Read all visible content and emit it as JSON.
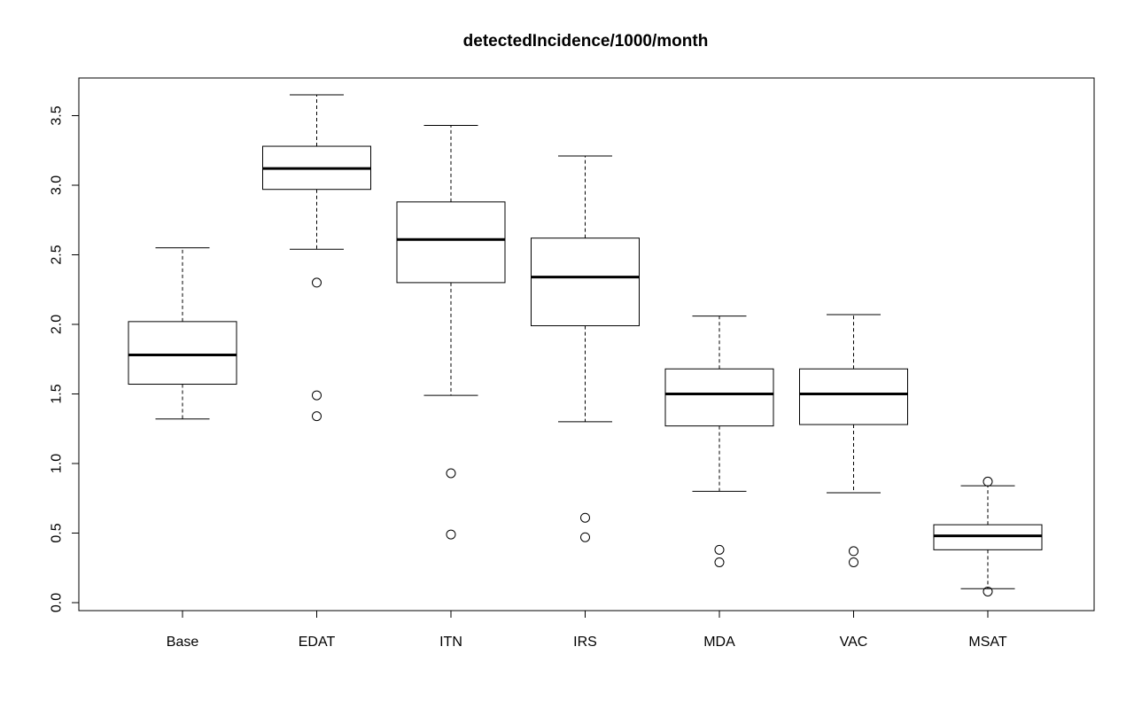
{
  "chart_data": {
    "type": "box",
    "title": "detectedIncidence/1000/month",
    "xlabel": "",
    "ylabel": "",
    "ylim": [
      0.0,
      3.6
    ],
    "yticks": [
      0.0,
      0.5,
      1.0,
      1.5,
      2.0,
      2.5,
      3.0,
      3.5
    ],
    "ytick_labels": [
      "0.0",
      "0.5",
      "1.0",
      "1.5",
      "2.0",
      "2.5",
      "3.0",
      "3.5"
    ],
    "categories": [
      "Base",
      "EDAT",
      "ITN",
      "IRS",
      "MDA",
      "VAC",
      "MSAT"
    ],
    "grid": false,
    "legend": "none",
    "boxes": [
      {
        "name": "Base",
        "whisker_low": 1.32,
        "q1": 1.57,
        "median": 1.78,
        "q3": 2.02,
        "whisker_high": 2.55,
        "outliers": []
      },
      {
        "name": "EDAT",
        "whisker_low": 2.54,
        "q1": 2.97,
        "median": 3.12,
        "q3": 3.28,
        "whisker_high": 3.65,
        "outliers": [
          2.3,
          1.49,
          1.34
        ]
      },
      {
        "name": "ITN",
        "whisker_low": 1.49,
        "q1": 2.3,
        "median": 2.61,
        "q3": 2.88,
        "whisker_high": 3.43,
        "outliers": [
          0.93,
          0.49
        ]
      },
      {
        "name": "IRS",
        "whisker_low": 1.3,
        "q1": 1.99,
        "median": 2.34,
        "q3": 2.62,
        "whisker_high": 3.21,
        "outliers": [
          0.61,
          0.47
        ]
      },
      {
        "name": "MDA",
        "whisker_low": 0.8,
        "q1": 1.27,
        "median": 1.5,
        "q3": 1.68,
        "whisker_high": 2.06,
        "outliers": [
          0.38,
          0.29
        ]
      },
      {
        "name": "VAC",
        "whisker_low": 0.79,
        "q1": 1.28,
        "median": 1.5,
        "q3": 1.68,
        "whisker_high": 2.07,
        "outliers": [
          0.37,
          0.29
        ]
      },
      {
        "name": "MSAT",
        "whisker_low": 0.1,
        "q1": 0.38,
        "median": 0.48,
        "q3": 0.56,
        "whisker_high": 0.84,
        "outliers": [
          0.87,
          0.08
        ]
      }
    ]
  }
}
